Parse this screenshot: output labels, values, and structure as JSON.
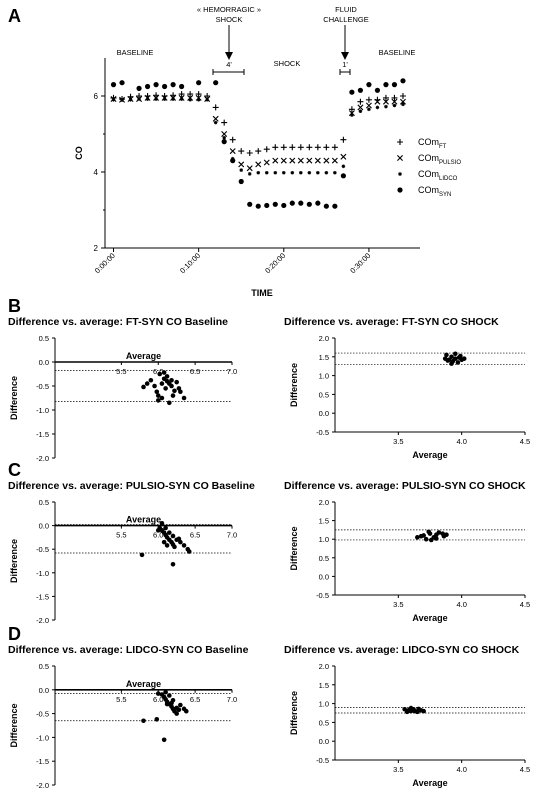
{
  "panel_labels": [
    "A",
    "B",
    "C",
    "D"
  ],
  "chart_data": [
    {
      "id": "A",
      "type": "scatter",
      "xlabel": "TIME",
      "ylabel": "CO",
      "xticks": [
        "0:00:00",
        "0:10:00",
        "0:20:00",
        "0:30:00"
      ],
      "xtick_minutes": [
        0,
        10,
        20,
        30
      ],
      "xlim_minutes": [
        -1,
        36
      ],
      "ylim": [
        2,
        7
      ],
      "yticks": [
        2,
        4,
        6
      ],
      "annotations": {
        "hemorrhagic_shock": [
          "« HEMORRAGIC »",
          "SHOCK"
        ],
        "fluid_challenge": [
          "FLUID",
          "CHALLENGE"
        ],
        "baseline_left": "BASELINE",
        "shock": "SHOCK",
        "baseline_right": "BASELINE",
        "interval_shock": "4'",
        "interval_fluid": "1'"
      },
      "series": [
        {
          "name": "COm",
          "sub": "FT",
          "marker": "plus",
          "x": [
            0,
            1,
            2,
            3,
            4,
            5,
            6,
            7,
            8,
            9,
            10,
            11,
            12,
            13,
            14,
            15,
            16,
            17,
            18,
            19,
            20,
            21,
            22,
            23,
            24,
            25,
            26,
            27,
            28,
            29,
            30,
            31,
            32,
            33,
            34
          ],
          "y": [
            5.95,
            5.92,
            5.98,
            6.0,
            6.0,
            6.02,
            6.0,
            6.02,
            6.05,
            6.05,
            6.05,
            6.0,
            5.7,
            5.3,
            4.85,
            4.55,
            4.5,
            4.55,
            4.6,
            4.65,
            4.65,
            4.65,
            4.65,
            4.65,
            4.65,
            4.65,
            4.65,
            4.85,
            5.65,
            5.85,
            5.9,
            5.9,
            5.95,
            5.95,
            6.0
          ]
        },
        {
          "name": "COm",
          "sub": "PULSIO",
          "marker": "cross",
          "x": [
            0,
            1,
            2,
            3,
            4,
            5,
            6,
            7,
            8,
            9,
            10,
            11,
            12,
            13,
            14,
            15,
            16,
            17,
            18,
            19,
            20,
            21,
            22,
            23,
            24,
            25,
            26,
            27,
            28,
            29,
            30,
            31,
            32,
            33,
            34
          ],
          "y": [
            5.92,
            5.9,
            5.92,
            5.92,
            5.95,
            5.95,
            5.95,
            5.95,
            5.95,
            5.95,
            5.95,
            5.92,
            5.4,
            5.0,
            4.55,
            4.2,
            4.1,
            4.2,
            4.25,
            4.3,
            4.3,
            4.3,
            4.3,
            4.3,
            4.3,
            4.3,
            4.3,
            4.4,
            5.55,
            5.7,
            5.75,
            5.85,
            5.85,
            5.85,
            5.85
          ]
        },
        {
          "name": "COm",
          "sub": "LIDCO",
          "marker": "star",
          "x": [
            0,
            1,
            2,
            3,
            4,
            5,
            6,
            7,
            8,
            9,
            10,
            11,
            12,
            13,
            14,
            15,
            16,
            17,
            18,
            19,
            20,
            21,
            22,
            23,
            24,
            25,
            26,
            27,
            28,
            29,
            30,
            31,
            32,
            33,
            34
          ],
          "y": [
            5.9,
            5.9,
            5.9,
            5.92,
            5.92,
            5.92,
            5.92,
            5.92,
            5.92,
            5.9,
            5.9,
            5.9,
            5.3,
            4.9,
            4.35,
            4.05,
            3.95,
            3.98,
            3.98,
            3.98,
            3.98,
            3.98,
            3.98,
            3.98,
            3.98,
            3.98,
            3.98,
            4.15,
            5.5,
            5.6,
            5.65,
            5.7,
            5.72,
            5.75,
            5.78
          ]
        },
        {
          "name": "COm",
          "sub": "SYN",
          "marker": "dot",
          "x": [
            0,
            1,
            3,
            4,
            5,
            6,
            7,
            8,
            10,
            12,
            13,
            14,
            15,
            16,
            17,
            18,
            19,
            20,
            21,
            22,
            23,
            24,
            25,
            26,
            27,
            28,
            29,
            30,
            31,
            32,
            33,
            34
          ],
          "y": [
            6.3,
            6.35,
            6.2,
            6.25,
            6.3,
            6.25,
            6.3,
            6.25,
            6.35,
            6.35,
            4.8,
            4.3,
            3.75,
            3.15,
            3.1,
            3.12,
            3.15,
            3.12,
            3.18,
            3.18,
            3.15,
            3.18,
            3.1,
            3.1,
            3.9,
            6.1,
            6.15,
            6.3,
            6.15,
            6.3,
            6.3,
            6.4
          ]
        }
      ]
    },
    {
      "id": "B-left",
      "type": "scatter",
      "title": "Difference vs. average: FT-SYN CO Baseline",
      "xlabel": "Average",
      "ylabel": "Difference",
      "xlim": [
        4.6,
        7.0
      ],
      "ylim": [
        -2.0,
        0.5
      ],
      "xticks": [
        5.5,
        6.0,
        6.5,
        7.0
      ],
      "yticks": [
        0.5,
        0.0,
        -0.5,
        -1.0,
        -1.5,
        -2.0
      ],
      "xaxis_at": 0,
      "hlines": [
        -0.18,
        -0.82
      ],
      "points": [
        [
          6.02,
          -0.25
        ],
        [
          6.08,
          -0.35
        ],
        [
          6.12,
          -0.4
        ],
        [
          6.15,
          -0.45
        ],
        [
          6.18,
          -0.5
        ],
        [
          6.05,
          -0.45
        ],
        [
          6.1,
          -0.55
        ],
        [
          6.22,
          -0.6
        ],
        [
          5.95,
          -0.5
        ],
        [
          5.98,
          -0.62
        ],
        [
          6.0,
          -0.7
        ],
        [
          6.05,
          -0.75
        ],
        [
          6.12,
          -0.3
        ],
        [
          6.18,
          -0.38
        ],
        [
          6.25,
          -0.42
        ],
        [
          6.28,
          -0.55
        ],
        [
          6.3,
          -0.62
        ],
        [
          6.2,
          -0.7
        ],
        [
          5.9,
          -0.38
        ],
        [
          5.85,
          -0.45
        ],
        [
          6.0,
          -0.8
        ],
        [
          6.15,
          -0.85
        ],
        [
          6.35,
          -0.75
        ],
        [
          5.8,
          -0.52
        ],
        [
          6.08,
          -0.22
        ]
      ]
    },
    {
      "id": "B-right",
      "type": "scatter",
      "title": "Difference vs. average: FT-SYN CO SHOCK",
      "xlabel": "Average",
      "ylabel": "Difference",
      "xlim": [
        3.0,
        4.5
      ],
      "ylim": [
        -0.5,
        2.0
      ],
      "xticks": [
        3.5,
        4.0,
        4.5
      ],
      "yticks": [
        2.0,
        1.5,
        1.0,
        0.5,
        0.0,
        -0.5
      ],
      "xaxis_at": -0.5,
      "hlines": [
        1.6,
        1.3
      ],
      "points": [
        [
          3.88,
          1.55
        ],
        [
          3.92,
          1.5
        ],
        [
          3.95,
          1.45
        ],
        [
          3.9,
          1.42
        ],
        [
          3.98,
          1.48
        ],
        [
          3.93,
          1.38
        ],
        [
          3.97,
          1.35
        ],
        [
          4.0,
          1.42
        ],
        [
          3.87,
          1.45
        ],
        [
          3.95,
          1.58
        ],
        [
          3.92,
          1.32
        ],
        [
          3.99,
          1.52
        ],
        [
          3.89,
          1.4
        ],
        [
          4.02,
          1.45
        ]
      ]
    },
    {
      "id": "C-left",
      "type": "scatter",
      "title": "Difference vs. average: PULSIO-SYN CO Baseline",
      "xlabel": "Average",
      "ylabel": "Difference",
      "xlim": [
        4.6,
        7.0
      ],
      "ylim": [
        -2.0,
        0.5
      ],
      "xticks": [
        5.5,
        6.0,
        6.5,
        7.0
      ],
      "yticks": [
        0.5,
        0.0,
        -0.5,
        -1.0,
        -1.5,
        -2.0
      ],
      "xaxis_at": 0,
      "hlines": [
        0.02,
        -0.58
      ],
      "points": [
        [
          6.02,
          -0.05
        ],
        [
          6.05,
          -0.1
        ],
        [
          6.08,
          -0.15
        ],
        [
          6.1,
          -0.2
        ],
        [
          6.12,
          -0.25
        ],
        [
          6.15,
          -0.3
        ],
        [
          6.18,
          -0.35
        ],
        [
          6.2,
          -0.4
        ],
        [
          6.22,
          -0.45
        ],
        [
          6.25,
          -0.3
        ],
        [
          6.0,
          -0.1
        ],
        [
          6.05,
          0.05
        ],
        [
          6.1,
          -0.05
        ],
        [
          6.15,
          -0.15
        ],
        [
          6.2,
          -0.22
        ],
        [
          6.28,
          -0.28
        ],
        [
          6.3,
          -0.35
        ],
        [
          6.35,
          -0.42
        ],
        [
          6.4,
          -0.5
        ],
        [
          6.42,
          -0.55
        ],
        [
          5.78,
          -0.62
        ],
        [
          6.2,
          -0.82
        ],
        [
          6.08,
          -0.35
        ],
        [
          6.12,
          -0.42
        ]
      ]
    },
    {
      "id": "C-right",
      "type": "scatter",
      "title": "Difference vs. average: PULSIO-SYN CO SHOCK",
      "xlabel": "Average",
      "ylabel": "Difference",
      "xlim": [
        3.0,
        4.5
      ],
      "ylim": [
        -0.5,
        2.0
      ],
      "xticks": [
        3.5,
        4.0,
        4.5
      ],
      "yticks": [
        2.0,
        1.5,
        1.0,
        0.5,
        0.0,
        -0.5
      ],
      "xaxis_at": -0.5,
      "hlines": [
        1.25,
        0.98
      ],
      "points": [
        [
          3.65,
          1.05
        ],
        [
          3.7,
          1.1
        ],
        [
          3.75,
          1.15
        ],
        [
          3.8,
          1.12
        ],
        [
          3.78,
          1.05
        ],
        [
          3.72,
          1.0
        ],
        [
          3.82,
          1.18
        ],
        [
          3.85,
          1.15
        ],
        [
          3.68,
          1.08
        ],
        [
          3.76,
          0.98
        ],
        [
          3.88,
          1.12
        ],
        [
          3.74,
          1.2
        ],
        [
          3.8,
          1.02
        ],
        [
          3.86,
          1.08
        ]
      ]
    },
    {
      "id": "D-left",
      "type": "scatter",
      "title": "Difference vs. average: LIDCO-SYN CO Baseline",
      "xlabel": "Average",
      "ylabel": "Difference",
      "xlim": [
        4.6,
        7.0
      ],
      "ylim": [
        -2.0,
        0.5
      ],
      "xticks": [
        5.5,
        6.0,
        6.5,
        7.0
      ],
      "yticks": [
        0.5,
        0.0,
        -0.5,
        -1.0,
        -1.5,
        -2.0
      ],
      "xaxis_at": 0,
      "hlines": [
        -0.08,
        -0.65
      ],
      "points": [
        [
          6.05,
          -0.1
        ],
        [
          6.08,
          -0.15
        ],
        [
          6.1,
          -0.2
        ],
        [
          6.12,
          -0.25
        ],
        [
          6.15,
          -0.3
        ],
        [
          6.18,
          -0.35
        ],
        [
          6.2,
          -0.4
        ],
        [
          6.22,
          -0.45
        ],
        [
          6.25,
          -0.38
        ],
        [
          6.28,
          -0.42
        ],
        [
          6.0,
          -0.08
        ],
        [
          6.1,
          -0.05
        ],
        [
          6.15,
          -0.12
        ],
        [
          6.2,
          -0.22
        ],
        [
          6.3,
          -0.32
        ],
        [
          6.35,
          -0.4
        ],
        [
          6.38,
          -0.45
        ],
        [
          5.8,
          -0.65
        ],
        [
          5.98,
          -0.62
        ],
        [
          6.08,
          -1.05
        ],
        [
          6.12,
          -0.3
        ],
        [
          6.18,
          -0.28
        ],
        [
          6.25,
          -0.5
        ]
      ]
    },
    {
      "id": "D-right",
      "type": "scatter",
      "title": "Difference vs. average: LIDCO-SYN CO SHOCK",
      "xlabel": "Average",
      "ylabel": "Difference",
      "xlim": [
        3.0,
        4.5
      ],
      "ylim": [
        -0.5,
        2.0
      ],
      "xticks": [
        3.5,
        4.0,
        4.5
      ],
      "yticks": [
        2.0,
        1.5,
        1.0,
        0.5,
        0.0,
        -0.5
      ],
      "xaxis_at": -0.5,
      "hlines": [
        0.9,
        0.75
      ],
      "points": [
        [
          3.55,
          0.85
        ],
        [
          3.58,
          0.82
        ],
        [
          3.6,
          0.8
        ],
        [
          3.62,
          0.85
        ],
        [
          3.65,
          0.78
        ],
        [
          3.68,
          0.82
        ],
        [
          3.6,
          0.88
        ],
        [
          3.57,
          0.78
        ],
        [
          3.63,
          0.8
        ],
        [
          3.66,
          0.86
        ],
        [
          3.7,
          0.8
        ],
        [
          3.59,
          0.84
        ]
      ]
    }
  ]
}
